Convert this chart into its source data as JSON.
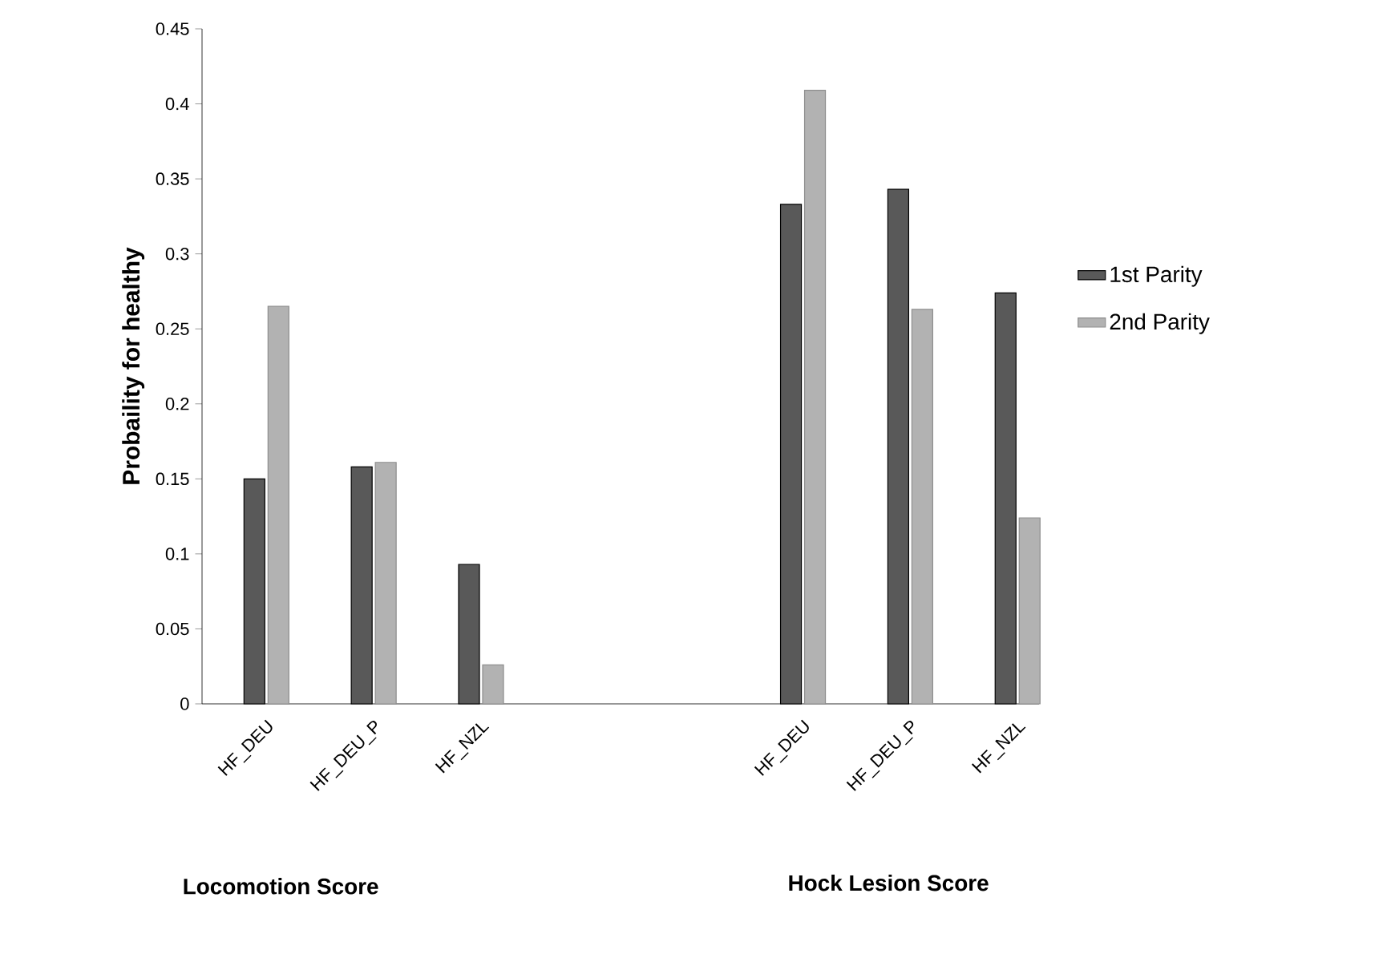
{
  "chart_data": {
    "type": "bar",
    "ylabel": "Probaility for healthy",
    "categories": [
      "HF_DEU",
      "HF_DEU_P",
      "HF_NZL",
      null,
      null,
      "HF_DEU",
      "HF_DEU_P",
      "HF_NZL"
    ],
    "series": [
      {
        "name": "1st Parity",
        "color": "#595959",
        "values": [
          0.15,
          0.158,
          0.093,
          null,
          null,
          0.333,
          0.343,
          0.274
        ]
      },
      {
        "name": "2nd Parity",
        "color": "#b2b2b2",
        "values": [
          0.265,
          0.161,
          0.026,
          null,
          null,
          0.409,
          0.263,
          0.124
        ]
      }
    ],
    "ylim": [
      0,
      0.45
    ],
    "yticks": [
      0,
      0.05,
      0.1,
      0.15,
      0.2,
      0.25,
      0.3,
      0.35,
      0.4,
      0.45
    ],
    "legend": "right",
    "grid": false,
    "annotations": [
      "Locomotion Score",
      "Hock Lesion Score"
    ]
  }
}
